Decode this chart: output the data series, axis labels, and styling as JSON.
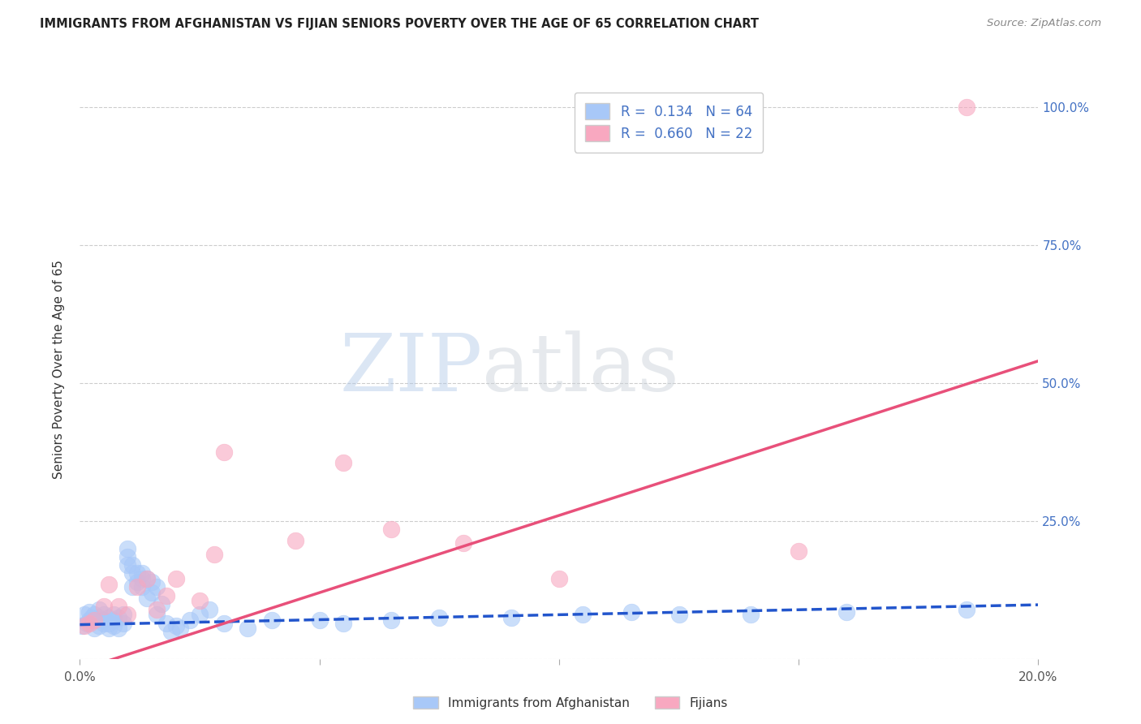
{
  "title": "IMMIGRANTS FROM AFGHANISTAN VS FIJIAN SENIORS POVERTY OVER THE AGE OF 65 CORRELATION CHART",
  "source": "Source: ZipAtlas.com",
  "ylabel": "Seniors Poverty Over the Age of 65",
  "x_min": 0.0,
  "x_max": 0.2,
  "y_min": 0.0,
  "y_max": 1.05,
  "x_ticks": [
    0.0,
    0.05,
    0.1,
    0.15,
    0.2
  ],
  "x_tick_labels": [
    "0.0%",
    "",
    "",
    "",
    "20.0%"
  ],
  "y_tick_labels_right": [
    "",
    "25.0%",
    "50.0%",
    "75.0%",
    "100.0%"
  ],
  "y_ticks_right": [
    0.0,
    0.25,
    0.5,
    0.75,
    1.0
  ],
  "afghanistan_color": "#A8C8F8",
  "fijian_color": "#F8A8C0",
  "afghanistan_R": 0.134,
  "afghanistan_N": 64,
  "fijian_R": 0.66,
  "fijian_N": 22,
  "legend_label_1": "Immigrants from Afghanistan",
  "legend_label_2": "Fijians",
  "watermark_zip": "ZIP",
  "watermark_atlas": "atlas",
  "afghanistan_line_color": "#2255CC",
  "fijian_line_color": "#E8507A",
  "afghanistan_dots_x": [
    0.0005,
    0.001,
    0.0015,
    0.002,
    0.002,
    0.0025,
    0.003,
    0.003,
    0.003,
    0.004,
    0.004,
    0.004,
    0.005,
    0.005,
    0.005,
    0.006,
    0.006,
    0.006,
    0.007,
    0.007,
    0.007,
    0.008,
    0.008,
    0.009,
    0.009,
    0.01,
    0.01,
    0.01,
    0.011,
    0.011,
    0.011,
    0.012,
    0.012,
    0.013,
    0.013,
    0.013,
    0.014,
    0.014,
    0.015,
    0.015,
    0.016,
    0.016,
    0.017,
    0.018,
    0.019,
    0.02,
    0.021,
    0.023,
    0.025,
    0.027,
    0.03,
    0.035,
    0.04,
    0.05,
    0.055,
    0.065,
    0.075,
    0.09,
    0.105,
    0.115,
    0.125,
    0.14,
    0.16,
    0.185
  ],
  "afghanistan_dots_y": [
    0.06,
    0.08,
    0.065,
    0.07,
    0.085,
    0.075,
    0.055,
    0.07,
    0.08,
    0.06,
    0.075,
    0.09,
    0.065,
    0.07,
    0.08,
    0.055,
    0.065,
    0.075,
    0.06,
    0.07,
    0.08,
    0.055,
    0.075,
    0.065,
    0.08,
    0.17,
    0.185,
    0.2,
    0.155,
    0.17,
    0.13,
    0.14,
    0.155,
    0.13,
    0.145,
    0.155,
    0.11,
    0.145,
    0.12,
    0.14,
    0.13,
    0.08,
    0.1,
    0.065,
    0.05,
    0.06,
    0.055,
    0.07,
    0.08,
    0.09,
    0.065,
    0.055,
    0.07,
    0.07,
    0.065,
    0.07,
    0.075,
    0.075,
    0.08,
    0.085,
    0.08,
    0.08,
    0.085,
    0.09
  ],
  "fijian_dots_x": [
    0.001,
    0.002,
    0.003,
    0.005,
    0.006,
    0.008,
    0.01,
    0.012,
    0.014,
    0.016,
    0.018,
    0.02,
    0.025,
    0.028,
    0.03,
    0.045,
    0.055,
    0.065,
    0.08,
    0.1,
    0.15,
    0.185
  ],
  "fijian_dots_y": [
    0.06,
    0.065,
    0.07,
    0.095,
    0.135,
    0.095,
    0.08,
    0.13,
    0.145,
    0.09,
    0.115,
    0.145,
    0.105,
    0.19,
    0.375,
    0.215,
    0.355,
    0.235,
    0.21,
    0.145,
    0.195,
    1.0
  ],
  "afghanistan_trend_x": [
    0.0,
    0.2
  ],
  "afghanistan_trend_y": [
    0.062,
    0.098
  ],
  "fijian_trend_x": [
    0.0,
    0.2
  ],
  "fijian_trend_y": [
    -0.02,
    0.54
  ]
}
